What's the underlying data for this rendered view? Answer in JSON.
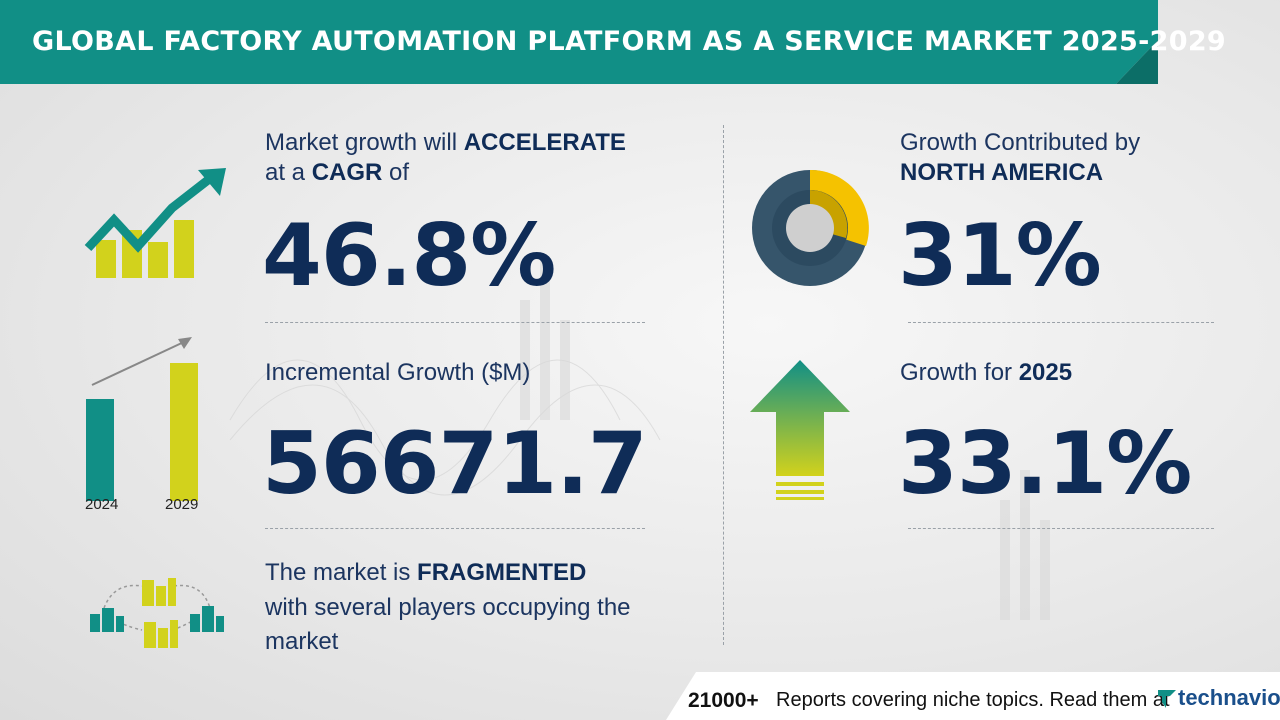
{
  "header": {
    "title": "GLOBAL FACTORY AUTOMATION PLATFORM AS A SERVICE MARKET 2025-2029"
  },
  "cagr": {
    "line1_prefix": "Market growth will",
    "line1_bold": "ACCELERATE",
    "line2_prefix": "at a",
    "line2_bold": "CAGR",
    "line2_suffix": "of",
    "value": "46.8%"
  },
  "incremental": {
    "label": "Incremental Growth ($M)",
    "value": "56671.7",
    "bar_labels": [
      "2024",
      "2029"
    ]
  },
  "fragmented": {
    "line1_prefix": "The market is",
    "line1_bold": "FRAGMENTED",
    "line2": "with several players occupying the",
    "line3": "market"
  },
  "region": {
    "line1": "Growth Contributed by",
    "line2_bold": "NORTH AMERICA",
    "value": "31%"
  },
  "growth_year": {
    "prefix": "Growth for",
    "year": "2025",
    "value": "33.1%"
  },
  "footer": {
    "count": "21000+",
    "text": "Reports covering niche topics. Read them at",
    "brand": "technavio"
  },
  "colors": {
    "teal": "#118f86",
    "lime": "#d2d21c",
    "navy": "#0f2c57",
    "donut_dark": "#36556b",
    "donut_yellow": "#f5c200"
  },
  "icons": [
    "growth-chart-icon",
    "bar-comparison-icon",
    "fragmented-buildings-icon",
    "donut-chart-icon",
    "up-arrow-icon",
    "technavio-logo-icon"
  ]
}
